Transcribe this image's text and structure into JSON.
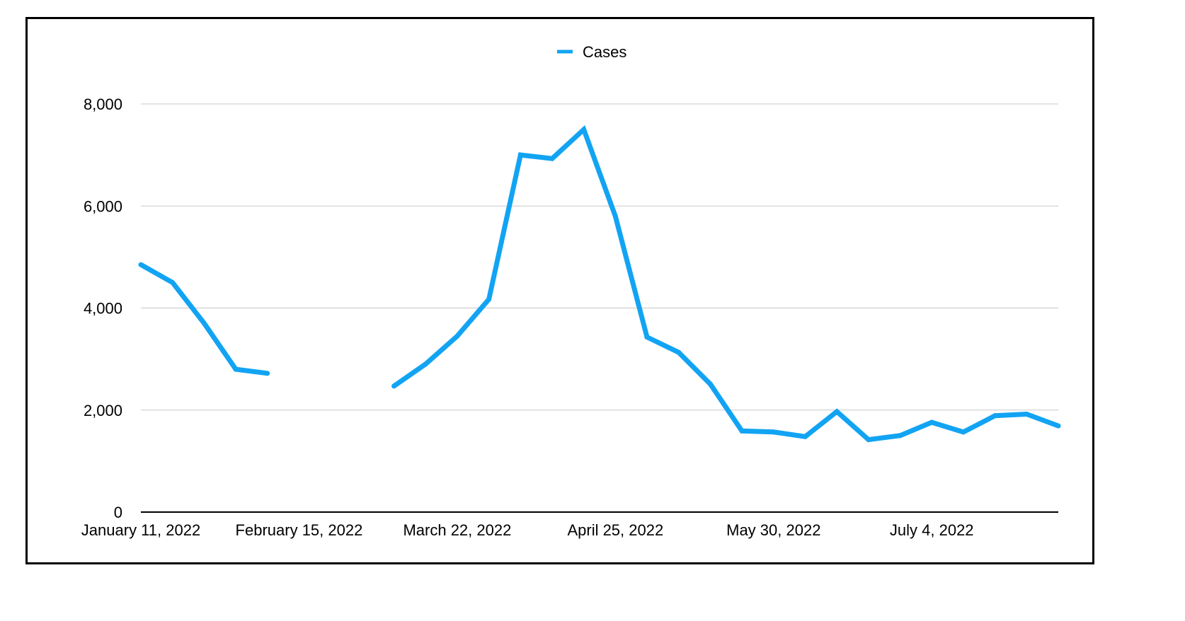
{
  "chart_data": {
    "type": "line",
    "title": "",
    "xlabel": "",
    "ylabel": "",
    "ylim": [
      0,
      8000
    ],
    "yticks": [
      0,
      2000,
      4000,
      6000,
      8000
    ],
    "ytick_labels": [
      "0",
      "2,000",
      "4,000",
      "6,000",
      "8,000"
    ],
    "xtick_labels": [
      "January 11, 2022",
      "February 15, 2022",
      "March 22, 2022",
      "April 25, 2022",
      "May 30, 2022",
      "July 4, 2022"
    ],
    "grid": true,
    "legend": "top-center",
    "colors": {
      "line": "#12a4f3",
      "grid": "#c8c8c8",
      "axis": "#000000"
    },
    "series": [
      {
        "name": "Cases",
        "x": [
          "2022-01-11",
          "2022-01-18",
          "2022-01-25",
          "2022-02-01",
          "2022-02-08",
          "2022-02-15",
          "2022-02-22",
          "2022-03-01",
          "2022-03-08",
          "2022-03-15",
          "2022-03-22",
          "2022-03-29",
          "2022-04-05",
          "2022-04-12",
          "2022-04-19",
          "2022-04-26",
          "2022-05-03",
          "2022-05-10",
          "2022-05-17",
          "2022-05-24",
          "2022-05-31",
          "2022-06-07",
          "2022-06-14",
          "2022-06-21",
          "2022-06-28",
          "2022-07-05",
          "2022-07-12",
          "2022-07-19",
          "2022-07-26",
          "2022-08-02"
        ],
        "values": [
          4850,
          4500,
          3700,
          2800,
          2720,
          null,
          null,
          null,
          2470,
          2900,
          3450,
          4170,
          7000,
          6930,
          7500,
          5800,
          3430,
          3130,
          2510,
          1590,
          1570,
          1480,
          1970,
          1420,
          1500,
          1760,
          1570,
          1890,
          1920,
          1690
        ]
      }
    ]
  }
}
